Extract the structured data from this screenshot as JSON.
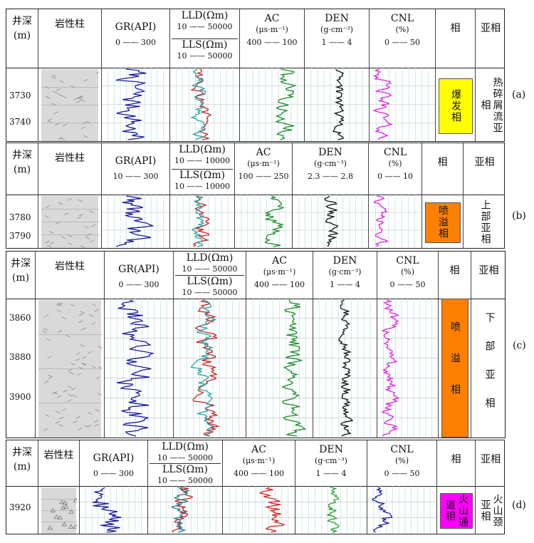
{
  "panels": [
    {
      "tag": "(a)",
      "header": {
        "depth_title": "井深",
        "depth_unit": "(m)",
        "lith_title": "岩性柱",
        "gr_title": "GR(API)",
        "gr_range": "0 —— 300",
        "lld_title": "LLD(Ωm)",
        "lld_range": "10 —— 50000",
        "lls_title": "LLS(Ωm)",
        "lls_range": "10 —— 50000",
        "ac_title": "AC",
        "ac_unit": "(μs·m⁻¹)",
        "ac_range": "400 —— 100",
        "den_title": "DEN",
        "den_unit": "(g·cm⁻³)",
        "den_range": "1 —— 4",
        "cnl_title": "CNL",
        "cnl_unit": "(%)",
        "cnl_range": "0 —— 50",
        "facies_title": "相",
        "subfacies_title": "亚相"
      },
      "depths": [
        "3730",
        "3740"
      ],
      "facies": "爆发相",
      "subfacies": "热碎屑流亚相",
      "facies_color": "#ffff00",
      "curve_colors": {
        "gr": "#1a1aa0",
        "lld": "#cc2222",
        "lls": "#2aa0a0",
        "ac": "#1f8a2a",
        "den": "#111111",
        "cnl": "#e020e0"
      }
    },
    {
      "tag": "(b)",
      "header": {
        "depth_title": "井深",
        "depth_unit": "(m)",
        "lith_title": "岩性柱",
        "gr_title": "GR(API)",
        "gr_range": "10 —— 300",
        "lld_title": "LLD(Ωm)",
        "lld_range": "10 —— 10000",
        "lls_title": "LLS(Ωm)",
        "lls_range": "10 —— 10000",
        "ac_title": "AC",
        "ac_unit": "(μs·m⁻¹)",
        "ac_range": "100 —— 250",
        "den_title": "DEN",
        "den_unit": "(g·cm⁻³)",
        "den_range": "2.3 —— 2.8",
        "cnl_title": "CNL",
        "cnl_unit": "(%)",
        "cnl_range": "0 —— 10",
        "facies_title": "相",
        "subfacies_title": "亚相"
      },
      "depths": [
        "3780",
        "3790"
      ],
      "facies": "喷溢相",
      "subfacies": "上部亚相",
      "facies_color": "#ff7f00",
      "curve_colors": {
        "gr": "#1a1aa0",
        "lld": "#cc2222",
        "lls": "#2aa0a0",
        "ac": "#1f8a2a",
        "den": "#111111",
        "cnl": "#e020e0"
      }
    },
    {
      "tag": "(c)",
      "header": {
        "depth_title": "井深",
        "depth_unit": "(m)",
        "lith_title": "岩性柱",
        "gr_title": "GR(API)",
        "gr_range": "0 —— 300",
        "lld_title": "LLD(Ωm)",
        "lld_range": "10 —— 50000",
        "lls_title": "LLS(Ωm)",
        "lls_range": "10 —— 50000",
        "ac_title": "AC",
        "ac_unit": "(μs·m⁻¹)",
        "ac_range": "400 —— 100",
        "den_title": "DEN",
        "den_unit": "(g·cm⁻³)",
        "den_range": "1 —— 4",
        "cnl_title": "CNL",
        "cnl_unit": "(%)",
        "cnl_range": "0 —— 50",
        "facies_title": "相",
        "subfacies_title": "亚相"
      },
      "depths": [
        "3860",
        "3880",
        "3900"
      ],
      "facies": "喷溢相",
      "subfacies": "下部亚相",
      "facies_color": "#ff7f00",
      "curve_colors": {
        "gr": "#1a1aa0",
        "lld": "#cc2222",
        "lls": "#2aa0a0",
        "ac": "#1f8a2a",
        "den": "#111111",
        "cnl": "#e020e0"
      }
    },
    {
      "tag": "(d)",
      "header": {
        "depth_title": "井深",
        "depth_unit": "(m)",
        "lith_title": "岩性柱",
        "gr_title": "GR(API)",
        "gr_range": "0 —— 300",
        "lld_title": "LLD(Ωm)",
        "lld_range": "10 —— 50000",
        "lls_title": "LLS(Ωm)",
        "lls_range": "10 —— 50000",
        "ac_title": "AC",
        "ac_unit": "(μs·m⁻¹)",
        "ac_range": "400 —— 100",
        "den_title": "DEN",
        "den_unit": "(g·cm⁻³)",
        "den_range": "1 —— 4",
        "cnl_title": "CNL",
        "cnl_unit": "(%)",
        "cnl_range": "0 —— 50",
        "facies_title": "相",
        "subfacies_title": "亚相"
      },
      "depths": [
        "3920"
      ],
      "facies": "火山通道相",
      "subfacies": "火山颈亚相",
      "facies_color": "#ff00ff",
      "curve_colors": {
        "gr": "#1a1aa0",
        "lld": "#cc2222",
        "lls": "#2a7a90",
        "ac": "#dd2222",
        "den": "#2aa02a",
        "cnl": "#1a1aa0"
      }
    }
  ]
}
